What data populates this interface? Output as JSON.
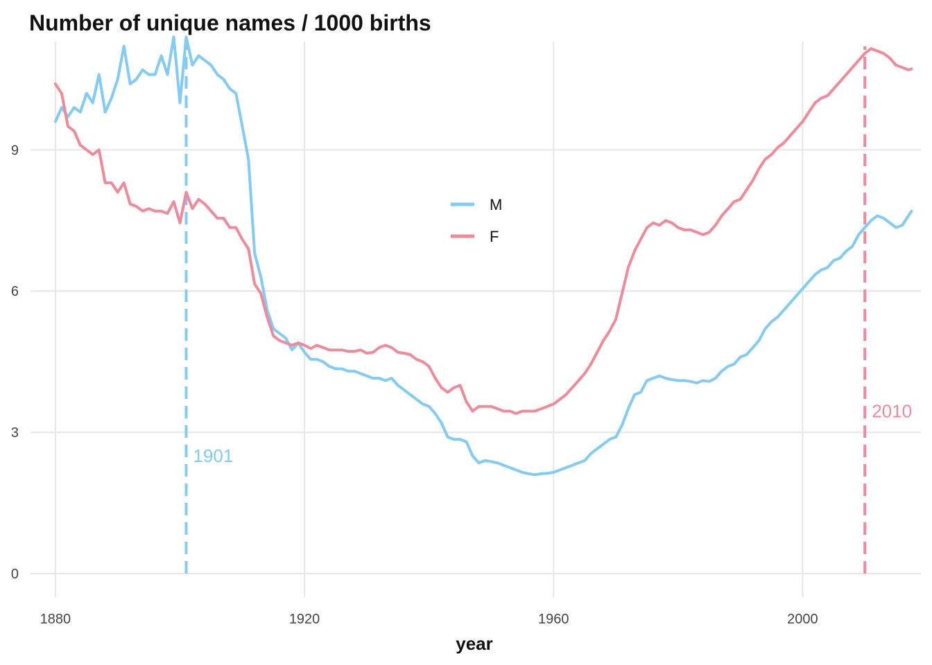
{
  "chart_data": {
    "type": "line",
    "title": "Number of unique names / 1000 births",
    "xlabel": "year",
    "ylabel": "",
    "xlim": [
      1876,
      2019
    ],
    "ylim": [
      -0.5,
      11.3
    ],
    "x_ticks": [
      1880,
      1920,
      1960,
      2000
    ],
    "x_tick_labels": [
      "1880",
      "1920",
      "1960",
      "2000"
    ],
    "y_ticks": [
      0,
      3,
      6,
      9
    ],
    "y_tick_labels": [
      "0",
      "3",
      "6",
      "9"
    ],
    "grid": true,
    "legend_position": "center",
    "series": [
      {
        "name": "M",
        "color": "#82cbf5",
        "points": [
          [
            1880,
            9.6
          ],
          [
            1881,
            9.9
          ],
          [
            1882,
            9.7
          ],
          [
            1883,
            9.9
          ],
          [
            1884,
            9.8
          ],
          [
            1885,
            10.2
          ],
          [
            1886,
            10.0
          ],
          [
            1887,
            10.6
          ],
          [
            1888,
            9.8
          ],
          [
            1889,
            10.1
          ],
          [
            1890,
            10.5
          ],
          [
            1891,
            11.2
          ],
          [
            1892,
            10.4
          ],
          [
            1893,
            10.5
          ],
          [
            1894,
            10.7
          ],
          [
            1895,
            10.6
          ],
          [
            1896,
            10.6
          ],
          [
            1897,
            11.0
          ],
          [
            1898,
            10.6
          ],
          [
            1899,
            11.4
          ],
          [
            1900,
            10.0
          ],
          [
            1901,
            11.4
          ],
          [
            1902,
            10.8
          ],
          [
            1903,
            11.0
          ],
          [
            1904,
            10.9
          ],
          [
            1905,
            10.8
          ],
          [
            1906,
            10.6
          ],
          [
            1907,
            10.5
          ],
          [
            1908,
            10.3
          ],
          [
            1909,
            10.2
          ],
          [
            1910,
            9.5
          ],
          [
            1911,
            8.8
          ],
          [
            1912,
            6.8
          ],
          [
            1913,
            6.3
          ],
          [
            1914,
            5.6
          ],
          [
            1915,
            5.2
          ],
          [
            1916,
            5.1
          ],
          [
            1917,
            5.0
          ],
          [
            1918,
            4.75
          ],
          [
            1919,
            4.9
          ],
          [
            1920,
            4.7
          ],
          [
            1921,
            4.55
          ],
          [
            1922,
            4.55
          ],
          [
            1923,
            4.5
          ],
          [
            1924,
            4.4
          ],
          [
            1925,
            4.35
          ],
          [
            1926,
            4.35
          ],
          [
            1927,
            4.3
          ],
          [
            1928,
            4.3
          ],
          [
            1929,
            4.25
          ],
          [
            1930,
            4.2
          ],
          [
            1931,
            4.15
          ],
          [
            1932,
            4.15
          ],
          [
            1933,
            4.1
          ],
          [
            1934,
            4.15
          ],
          [
            1935,
            4.0
          ],
          [
            1936,
            3.9
          ],
          [
            1937,
            3.8
          ],
          [
            1938,
            3.7
          ],
          [
            1939,
            3.6
          ],
          [
            1940,
            3.55
          ],
          [
            1941,
            3.4
          ],
          [
            1942,
            3.2
          ],
          [
            1943,
            2.9
          ],
          [
            1944,
            2.85
          ],
          [
            1945,
            2.85
          ],
          [
            1946,
            2.8
          ],
          [
            1947,
            2.5
          ],
          [
            1948,
            2.35
          ],
          [
            1949,
            2.4
          ],
          [
            1950,
            2.38
          ],
          [
            1951,
            2.35
          ],
          [
            1952,
            2.3
          ],
          [
            1953,
            2.25
          ],
          [
            1954,
            2.2
          ],
          [
            1955,
            2.15
          ],
          [
            1956,
            2.12
          ],
          [
            1957,
            2.1
          ],
          [
            1958,
            2.12
          ],
          [
            1959,
            2.13
          ],
          [
            1960,
            2.15
          ],
          [
            1961,
            2.2
          ],
          [
            1962,
            2.25
          ],
          [
            1963,
            2.3
          ],
          [
            1964,
            2.35
          ],
          [
            1965,
            2.4
          ],
          [
            1966,
            2.55
          ],
          [
            1967,
            2.65
          ],
          [
            1968,
            2.75
          ],
          [
            1969,
            2.85
          ],
          [
            1970,
            2.9
          ],
          [
            1971,
            3.15
          ],
          [
            1972,
            3.5
          ],
          [
            1973,
            3.8
          ],
          [
            1974,
            3.85
          ],
          [
            1975,
            4.1
          ],
          [
            1976,
            4.15
          ],
          [
            1977,
            4.2
          ],
          [
            1978,
            4.15
          ],
          [
            1979,
            4.12
          ],
          [
            1980,
            4.1
          ],
          [
            1981,
            4.1
          ],
          [
            1982,
            4.08
          ],
          [
            1983,
            4.05
          ],
          [
            1984,
            4.1
          ],
          [
            1985,
            4.08
          ],
          [
            1986,
            4.15
          ],
          [
            1987,
            4.3
          ],
          [
            1988,
            4.4
          ],
          [
            1989,
            4.45
          ],
          [
            1990,
            4.6
          ],
          [
            1991,
            4.65
          ],
          [
            1992,
            4.8
          ],
          [
            1993,
            4.95
          ],
          [
            1994,
            5.2
          ],
          [
            1995,
            5.35
          ],
          [
            1996,
            5.45
          ],
          [
            1997,
            5.6
          ],
          [
            1998,
            5.75
          ],
          [
            1999,
            5.9
          ],
          [
            2000,
            6.05
          ],
          [
            2001,
            6.2
          ],
          [
            2002,
            6.35
          ],
          [
            2003,
            6.45
          ],
          [
            2004,
            6.5
          ],
          [
            2005,
            6.65
          ],
          [
            2006,
            6.7
          ],
          [
            2007,
            6.85
          ],
          [
            2008,
            6.95
          ],
          [
            2009,
            7.2
          ],
          [
            2010,
            7.35
          ],
          [
            2011,
            7.5
          ],
          [
            2012,
            7.6
          ],
          [
            2013,
            7.55
          ],
          [
            2014,
            7.45
          ],
          [
            2015,
            7.35
          ],
          [
            2016,
            7.4
          ],
          [
            2017,
            7.6
          ],
          [
            2017.5,
            7.7
          ]
        ]
      },
      {
        "name": "F",
        "color": "#f08a9b",
        "points": [
          [
            1880,
            10.4
          ],
          [
            1881,
            10.2
          ],
          [
            1882,
            9.5
          ],
          [
            1883,
            9.4
          ],
          [
            1884,
            9.1
          ],
          [
            1885,
            9.0
          ],
          [
            1886,
            8.9
          ],
          [
            1887,
            9.0
          ],
          [
            1888,
            8.3
          ],
          [
            1889,
            8.3
          ],
          [
            1890,
            8.1
          ],
          [
            1891,
            8.3
          ],
          [
            1892,
            7.85
          ],
          [
            1893,
            7.8
          ],
          [
            1894,
            7.7
          ],
          [
            1895,
            7.75
          ],
          [
            1896,
            7.7
          ],
          [
            1897,
            7.7
          ],
          [
            1898,
            7.65
          ],
          [
            1899,
            7.9
          ],
          [
            1900,
            7.45
          ],
          [
            1901,
            8.1
          ],
          [
            1902,
            7.75
          ],
          [
            1903,
            7.95
          ],
          [
            1904,
            7.85
          ],
          [
            1905,
            7.7
          ],
          [
            1906,
            7.55
          ],
          [
            1907,
            7.55
          ],
          [
            1908,
            7.35
          ],
          [
            1909,
            7.35
          ],
          [
            1910,
            7.1
          ],
          [
            1911,
            6.9
          ],
          [
            1912,
            6.15
          ],
          [
            1913,
            5.95
          ],
          [
            1914,
            5.45
          ],
          [
            1915,
            5.05
          ],
          [
            1916,
            4.95
          ],
          [
            1917,
            4.9
          ],
          [
            1918,
            4.85
          ],
          [
            1919,
            4.9
          ],
          [
            1920,
            4.85
          ],
          [
            1921,
            4.78
          ],
          [
            1922,
            4.85
          ],
          [
            1923,
            4.8
          ],
          [
            1924,
            4.75
          ],
          [
            1925,
            4.75
          ],
          [
            1926,
            4.75
          ],
          [
            1927,
            4.72
          ],
          [
            1928,
            4.72
          ],
          [
            1929,
            4.75
          ],
          [
            1930,
            4.68
          ],
          [
            1931,
            4.7
          ],
          [
            1932,
            4.8
          ],
          [
            1933,
            4.85
          ],
          [
            1934,
            4.8
          ],
          [
            1935,
            4.7
          ],
          [
            1936,
            4.68
          ],
          [
            1937,
            4.65
          ],
          [
            1938,
            4.55
          ],
          [
            1939,
            4.5
          ],
          [
            1940,
            4.4
          ],
          [
            1941,
            4.15
          ],
          [
            1942,
            3.95
          ],
          [
            1943,
            3.85
          ],
          [
            1944,
            3.95
          ],
          [
            1945,
            4.0
          ],
          [
            1946,
            3.65
          ],
          [
            1947,
            3.45
          ],
          [
            1948,
            3.55
          ],
          [
            1949,
            3.55
          ],
          [
            1950,
            3.55
          ],
          [
            1951,
            3.5
          ],
          [
            1952,
            3.45
          ],
          [
            1953,
            3.45
          ],
          [
            1954,
            3.4
          ],
          [
            1955,
            3.45
          ],
          [
            1956,
            3.45
          ],
          [
            1957,
            3.45
          ],
          [
            1958,
            3.5
          ],
          [
            1959,
            3.55
          ],
          [
            1960,
            3.6
          ],
          [
            1961,
            3.7
          ],
          [
            1962,
            3.8
          ],
          [
            1963,
            3.95
          ],
          [
            1964,
            4.1
          ],
          [
            1965,
            4.25
          ],
          [
            1966,
            4.45
          ],
          [
            1967,
            4.7
          ],
          [
            1968,
            4.95
          ],
          [
            1969,
            5.15
          ],
          [
            1970,
            5.4
          ],
          [
            1971,
            5.95
          ],
          [
            1972,
            6.5
          ],
          [
            1973,
            6.85
          ],
          [
            1974,
            7.1
          ],
          [
            1975,
            7.35
          ],
          [
            1976,
            7.45
          ],
          [
            1977,
            7.4
          ],
          [
            1978,
            7.5
          ],
          [
            1979,
            7.45
          ],
          [
            1980,
            7.35
          ],
          [
            1981,
            7.3
          ],
          [
            1982,
            7.3
          ],
          [
            1983,
            7.25
          ],
          [
            1984,
            7.2
          ],
          [
            1985,
            7.25
          ],
          [
            1986,
            7.4
          ],
          [
            1987,
            7.6
          ],
          [
            1988,
            7.75
          ],
          [
            1989,
            7.9
          ],
          [
            1990,
            7.95
          ],
          [
            1991,
            8.15
          ],
          [
            1992,
            8.35
          ],
          [
            1993,
            8.6
          ],
          [
            1994,
            8.8
          ],
          [
            1995,
            8.9
          ],
          [
            1996,
            9.05
          ],
          [
            1997,
            9.15
          ],
          [
            1998,
            9.3
          ],
          [
            1999,
            9.45
          ],
          [
            2000,
            9.6
          ],
          [
            2001,
            9.8
          ],
          [
            2002,
            10.0
          ],
          [
            2003,
            10.1
          ],
          [
            2004,
            10.15
          ],
          [
            2005,
            10.3
          ],
          [
            2006,
            10.45
          ],
          [
            2007,
            10.6
          ],
          [
            2008,
            10.75
          ],
          [
            2009,
            10.9
          ],
          [
            2010,
            11.05
          ],
          [
            2011,
            11.15
          ],
          [
            2012,
            11.1
          ],
          [
            2013,
            11.05
          ],
          [
            2014,
            10.95
          ],
          [
            2015,
            10.8
          ],
          [
            2016,
            10.75
          ],
          [
            2017,
            10.7
          ],
          [
            2017.5,
            10.72
          ]
        ]
      }
    ],
    "annotations": [
      {
        "label": "1901",
        "x": 1901,
        "y": 2.5,
        "color": "#82cbf5"
      },
      {
        "label": "2010",
        "x": 2010,
        "y": 3.45,
        "color": "#f08a9b"
      }
    ]
  }
}
